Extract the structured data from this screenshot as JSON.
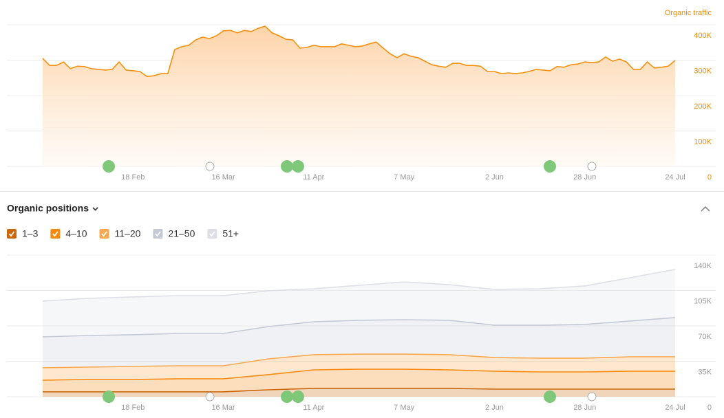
{
  "chart_data": [
    {
      "type": "area",
      "y_label": "Organic traffic",
      "categories": [
        null,
        null,
        null,
        null,
        null,
        null,
        null,
        null,
        null,
        null,
        null,
        null,
        null,
        "18 Feb",
        null,
        null,
        null,
        null,
        null,
        null,
        null,
        null,
        null,
        null,
        null,
        null,
        "16 Mar",
        null,
        null,
        null,
        null,
        null,
        null,
        null,
        null,
        null,
        null,
        null,
        null,
        "11 Apr",
        null,
        null,
        null,
        null,
        null,
        null,
        null,
        null,
        null,
        null,
        null,
        null,
        "7 May",
        null,
        null,
        null,
        null,
        null,
        null,
        null,
        null,
        null,
        null,
        null,
        null,
        "2 Jun",
        null,
        null,
        null,
        null,
        null,
        null,
        null,
        null,
        null,
        null,
        null,
        null,
        "28 Jun",
        null,
        null,
        null,
        null,
        null,
        null,
        null,
        null,
        null,
        null,
        null,
        null,
        "24 Jul"
      ],
      "series": [
        {
          "color": "#f5900e",
          "values": [
            305000,
            285000,
            285000,
            295000,
            276000,
            283000,
            282000,
            276000,
            274000,
            272000,
            274000,
            295000,
            272000,
            270000,
            268000,
            254000,
            256000,
            262000,
            262000,
            330000,
            338000,
            342000,
            357000,
            365000,
            361000,
            369000,
            383000,
            384000,
            377000,
            384000,
            381000,
            390000,
            396000,
            377000,
            369000,
            359000,
            357000,
            334000,
            336000,
            342000,
            338000,
            338000,
            338000,
            346000,
            342000,
            338000,
            340000,
            346000,
            351000,
            334000,
            318000,
            307000,
            318000,
            311000,
            307000,
            297000,
            287000,
            283000,
            280000,
            291000,
            291000,
            285000,
            285000,
            283000,
            268000,
            268000,
            262000,
            264000,
            262000,
            264000,
            268000,
            274000,
            272000,
            270000,
            282000,
            280000,
            287000,
            289000,
            295000,
            293000,
            295000,
            309000,
            297000,
            303000,
            295000,
            274000,
            274000,
            295000,
            278000,
            280000,
            283000,
            299000
          ]
        }
      ],
      "ylim": [
        0,
        400000
      ],
      "yticks": [
        0,
        {
          "value": 100000,
          "label": "100K"
        },
        {
          "value": 200000,
          "label": "200K"
        },
        {
          "value": 300000,
          "label": "300K"
        },
        {
          "value": 400000,
          "label": "400K"
        }
      ],
      "grid": true
    },
    {
      "type": "stacked_area",
      "title": "Organic positions",
      "categories": [
        null,
        null,
        "18 Feb",
        null,
        "16 Mar",
        null,
        "11 Apr",
        null,
        "7 May",
        null,
        "2 Jun",
        null,
        "28 Jun",
        null,
        "24 Jul"
      ],
      "series": [
        {
          "name": "1–3",
          "color": "#c8680a",
          "values": [
            4800,
            4800,
            4800,
            4800,
            4800,
            6800,
            8200,
            8200,
            8200,
            8200,
            7500,
            7500,
            7500,
            7500,
            7500
          ]
        },
        {
          "name": "4–10",
          "color": "#f7890d",
          "values": [
            11500,
            12200,
            12200,
            12900,
            12900,
            15000,
            18300,
            19000,
            19000,
            18300,
            17700,
            17000,
            17000,
            17700,
            17700
          ]
        },
        {
          "name": "11–20",
          "color": "#f9a84e",
          "values": [
            12300,
            12200,
            12900,
            12900,
            12900,
            15600,
            15000,
            14900,
            14900,
            15000,
            13500,
            13600,
            13600,
            14200,
            14200
          ]
        },
        {
          "name": "21–50",
          "color": "#c3c9d5",
          "values": [
            30500,
            31300,
            31300,
            31900,
            31900,
            31900,
            32600,
            33400,
            34000,
            34000,
            32000,
            32600,
            33300,
            35400,
            38800
          ]
        },
        {
          "name": "51+",
          "color": "#dcdfe6",
          "values": [
            35400,
            36700,
            37400,
            37400,
            37400,
            35400,
            32600,
            34600,
            37400,
            35300,
            35300,
            36000,
            38100,
            42800,
            47600
          ]
        }
      ],
      "ylim": [
        0,
        140000
      ],
      "yticks": [
        0,
        {
          "value": 35000,
          "label": "35K"
        },
        {
          "value": 70000,
          "label": "70K"
        },
        {
          "value": 105000,
          "label": "105K"
        },
        {
          "value": 140000,
          "label": "140K"
        }
      ],
      "grid": true
    }
  ]
}
